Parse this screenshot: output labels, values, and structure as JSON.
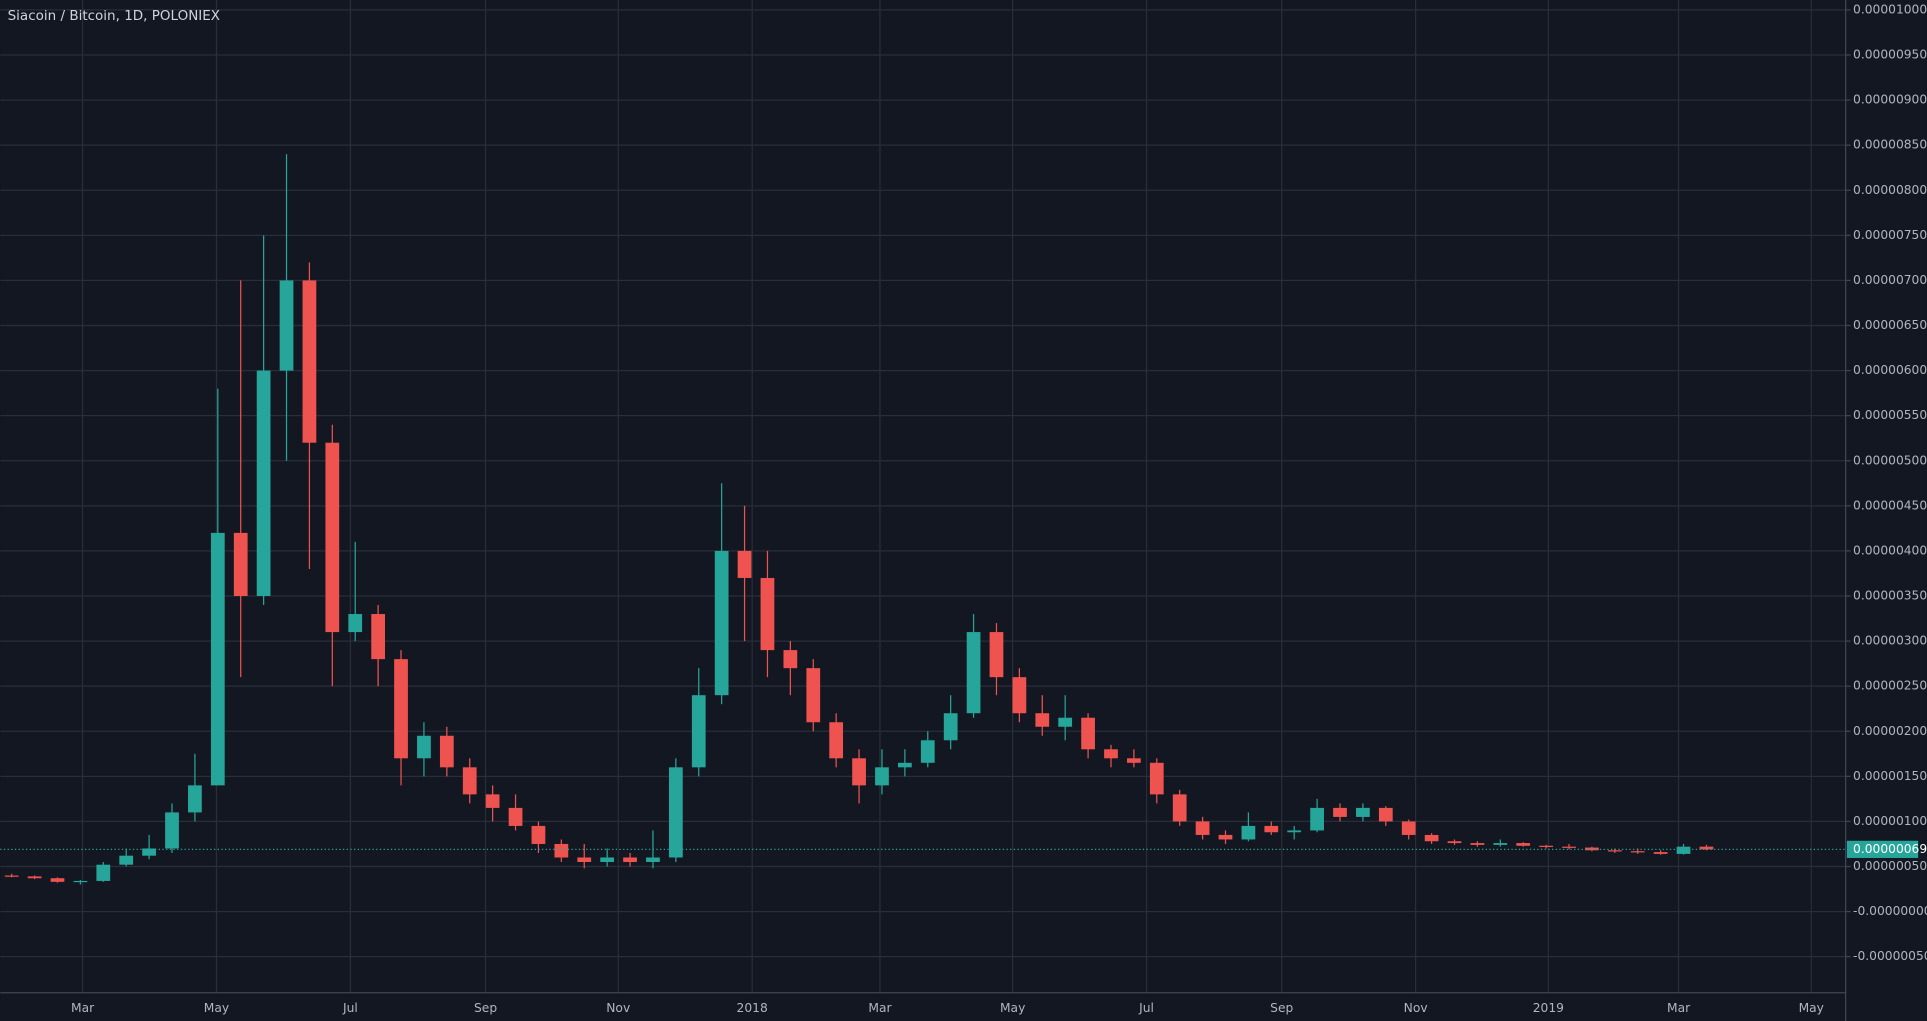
{
  "chart_data": {
    "type": "candlestick",
    "title": "Siacoin / Bitcoin, 1D, POLONIEX",
    "up_color": "#26a69a",
    "down_color": "#ef5350",
    "grid": true,
    "xticks": [
      "Mar",
      "May",
      "Jul",
      "Sep",
      "Nov",
      "2018",
      "Mar",
      "May",
      "Jul",
      "Sep",
      "Nov",
      "2019",
      "Mar",
      "May"
    ],
    "ylim": [
      -9e-07,
      1.011e-05
    ],
    "yticks": [
      {
        "value": 1e-05,
        "label": "0.00001000"
      },
      {
        "value": 9.5e-06,
        "label": "0.00000950"
      },
      {
        "value": 9e-06,
        "label": "0.00000900"
      },
      {
        "value": 8.5e-06,
        "label": "0.00000850"
      },
      {
        "value": 8e-06,
        "label": "0.00000800"
      },
      {
        "value": 7.5e-06,
        "label": "0.00000750"
      },
      {
        "value": 7e-06,
        "label": "0.00000700"
      },
      {
        "value": 6.5e-06,
        "label": "0.00000650"
      },
      {
        "value": 6e-06,
        "label": "0.00000600"
      },
      {
        "value": 5.5e-06,
        "label": "0.00000550"
      },
      {
        "value": 5e-06,
        "label": "0.00000500"
      },
      {
        "value": 4.5e-06,
        "label": "0.00000450"
      },
      {
        "value": 4e-06,
        "label": "0.00000400"
      },
      {
        "value": 3.5e-06,
        "label": "0.00000350"
      },
      {
        "value": 3e-06,
        "label": "0.00000300"
      },
      {
        "value": 2.5e-06,
        "label": "0.00000250"
      },
      {
        "value": 2e-06,
        "label": "0.00000200"
      },
      {
        "value": 1.5e-06,
        "label": "0.00000150"
      },
      {
        "value": 1e-06,
        "label": "0.00000100"
      },
      {
        "value": 5e-07,
        "label": "0.00000050"
      },
      {
        "value": 0,
        "label": "-0.00000000"
      },
      {
        "value": -5e-07,
        "label": "-0.00000050"
      }
    ],
    "last_price": {
      "value": 6.9e-07,
      "label": "0.00000069"
    },
    "open": [
      4e-07,
      3.9e-07,
      3.7e-07,
      3.3e-07,
      3.4e-07,
      5.2e-07,
      6.2e-07,
      7e-07,
      1.1e-06,
      1.4e-06,
      4.2e-06,
      3.5e-06,
      6e-06,
      7e-06,
      5.2e-06,
      3.1e-06,
      3.3e-06,
      2.8e-06,
      1.7e-06,
      1.95e-06,
      1.6e-06,
      1.3e-06,
      1.15e-06,
      9.5e-07,
      7.5e-07,
      6e-07,
      5.5e-07,
      6e-07,
      5.5e-07,
      6e-07,
      1.6e-06,
      2.4e-06,
      4e-06,
      3.7e-06,
      2.9e-06,
      2.7e-06,
      2.1e-06,
      1.7e-06,
      1.4e-06,
      1.6e-06,
      1.65e-06,
      1.9e-06,
      2.2e-06,
      3.1e-06,
      2.6e-06,
      2.2e-06,
      2.05e-06,
      2.15e-06,
      1.8e-06,
      1.7e-06,
      1.65e-06,
      1.3e-06,
      1e-06,
      8.5e-07,
      8e-07,
      9.5e-07,
      8.8e-07,
      9e-07,
      1.15e-06,
      1.05e-06,
      1.15e-06,
      1e-06,
      8.5e-07,
      7.8e-07,
      7.6e-07,
      7.4e-07,
      7.6e-07,
      7.3e-07,
      7.2e-07,
      7.1e-07,
      6.8e-07,
      6.7e-07,
      6.6e-07,
      6.4e-07,
      7.2e-07
    ],
    "high": [
      4.2e-07,
      4e-07,
      3.8e-07,
      3.5e-07,
      5.5e-07,
      7e-07,
      8.5e-07,
      1.2e-06,
      1.75e-06,
      5.8e-06,
      7e-06,
      7.5e-06,
      8.4e-06,
      7.2e-06,
      5.4e-06,
      4.1e-06,
      3.4e-06,
      2.9e-06,
      2.1e-06,
      2.05e-06,
      1.7e-06,
      1.4e-06,
      1.3e-06,
      1e-06,
      8e-07,
      7.5e-07,
      7e-07,
      6.5e-07,
      9e-07,
      1.7e-06,
      2.7e-06,
      4.75e-06,
      4.5e-06,
      4e-06,
      3e-06,
      2.8e-06,
      2.2e-06,
      1.8e-06,
      1.8e-06,
      1.8e-06,
      2e-06,
      2.4e-06,
      3.3e-06,
      3.2e-06,
      2.7e-06,
      2.4e-06,
      2.4e-06,
      2.2e-06,
      1.85e-06,
      1.8e-06,
      1.7e-06,
      1.35e-06,
      1.05e-06,
      9e-07,
      1.1e-06,
      1e-06,
      9.5e-07,
      1.25e-06,
      1.2e-06,
      1.2e-06,
      1.17e-06,
      1.02e-06,
      8.7e-07,
      8e-07,
      7.8e-07,
      8e-07,
      7.7e-07,
      7.4e-07,
      7.5e-07,
      7.2e-07,
      7e-07,
      7e-07,
      6.8e-07,
      7.5e-07,
      7.4e-07
    ],
    "low": [
      3.8e-07,
      3.6e-07,
      3.2e-07,
      3e-07,
      3.3e-07,
      5e-07,
      5.8e-07,
      6.5e-07,
      1e-06,
      1.4e-06,
      2.6e-06,
      3.4e-06,
      5e-06,
      3.8e-06,
      2.5e-06,
      3e-06,
      2.5e-06,
      1.4e-06,
      1.5e-06,
      1.5e-06,
      1.2e-06,
      1e-06,
      9e-07,
      6.5e-07,
      5.5e-07,
      4.8e-07,
      5e-07,
      5e-07,
      4.8e-07,
      5.5e-07,
      1.5e-06,
      2.3e-06,
      3e-06,
      2.6e-06,
      2.4e-06,
      2e-06,
      1.6e-06,
      1.2e-06,
      1.3e-06,
      1.5e-06,
      1.6e-06,
      1.8e-06,
      2.15e-06,
      2.4e-06,
      2.1e-06,
      1.95e-06,
      1.9e-06,
      1.7e-06,
      1.6e-06,
      1.6e-06,
      1.2e-06,
      9.5e-07,
      8e-07,
      7.5e-07,
      7.8e-07,
      8.5e-07,
      8e-07,
      8.8e-07,
      1e-06,
      1e-06,
      9.5e-07,
      8e-07,
      7.5e-07,
      7.4e-07,
      7.2e-07,
      7.2e-07,
      7.2e-07,
      7e-07,
      6.9e-07,
      6.7e-07,
      6.5e-07,
      6.4e-07,
      6.3e-07,
      6.3e-07,
      6.8e-07
    ],
    "close": [
      3.9e-07,
      3.7e-07,
      3.3e-07,
      3.4e-07,
      5.2e-07,
      6.2e-07,
      7e-07,
      1.1e-06,
      1.4e-06,
      4.2e-06,
      3.5e-06,
      6e-06,
      7e-06,
      5.2e-06,
      3.1e-06,
      3.3e-06,
      2.8e-06,
      1.7e-06,
      1.95e-06,
      1.6e-06,
      1.3e-06,
      1.15e-06,
      9.5e-07,
      7.5e-07,
      6e-07,
      5.5e-07,
      6e-07,
      5.5e-07,
      6e-07,
      1.6e-06,
      2.4e-06,
      4e-06,
      3.7e-06,
      2.9e-06,
      2.7e-06,
      2.1e-06,
      1.7e-06,
      1.4e-06,
      1.6e-06,
      1.65e-06,
      1.9e-06,
      2.2e-06,
      3.1e-06,
      2.6e-06,
      2.2e-06,
      2.05e-06,
      2.15e-06,
      1.8e-06,
      1.7e-06,
      1.65e-06,
      1.3e-06,
      1e-06,
      8.5e-07,
      8e-07,
      9.5e-07,
      8.8e-07,
      9e-07,
      1.15e-06,
      1.05e-06,
      1.15e-06,
      1e-06,
      8.5e-07,
      7.8e-07,
      7.6e-07,
      7.4e-07,
      7.6e-07,
      7.3e-07,
      7.2e-07,
      7.1e-07,
      6.8e-07,
      6.7e-07,
      6.6e-07,
      6.4e-07,
      7.2e-07,
      6.9e-07
    ]
  }
}
